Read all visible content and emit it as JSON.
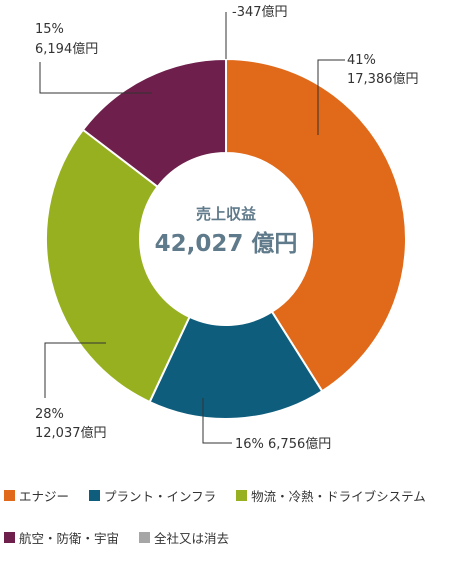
{
  "chart_data": {
    "type": "pie",
    "variant": "donut",
    "center_title": "売上収益",
    "center_total": "42,027 億円",
    "slices": [
      {
        "name": "エナジー",
        "percent_label": "41%",
        "value_label": "17,386億円",
        "value": 17386,
        "color": "#e06a1a"
      },
      {
        "name": "プラント・インフラ",
        "percent_label": "16%",
        "value_label": "6,756億円",
        "value": 6756,
        "color": "#0e5d7d"
      },
      {
        "name": "物流・冷熱・ドライブシステム",
        "percent_label": "28%",
        "value_label": "12,037億円",
        "value": 12037,
        "color": "#97b020"
      },
      {
        "name": "航空・防衛・宇宙",
        "percent_label": "15%",
        "value_label": "6,194億円",
        "value": 6194,
        "color": "#6e1f4b"
      },
      {
        "name": "全社又は消去",
        "percent_label": "",
        "value_label": "-347億円",
        "value": -347,
        "color": "#a6a6a6"
      }
    ]
  },
  "legend": {
    "rows": [
      [
        {
          "label": "エナジー",
          "color": "#e06a1a"
        },
        {
          "label": "プラント・インフラ",
          "color": "#0e5d7d"
        },
        {
          "label": "物流・冷熱・ドライブシステム",
          "color": "#97b020"
        }
      ],
      [
        {
          "label": "航空・防衛・宇宙",
          "color": "#6e1f4b"
        },
        {
          "label": "全社又は消去",
          "color": "#a6a6a6"
        }
      ]
    ]
  }
}
